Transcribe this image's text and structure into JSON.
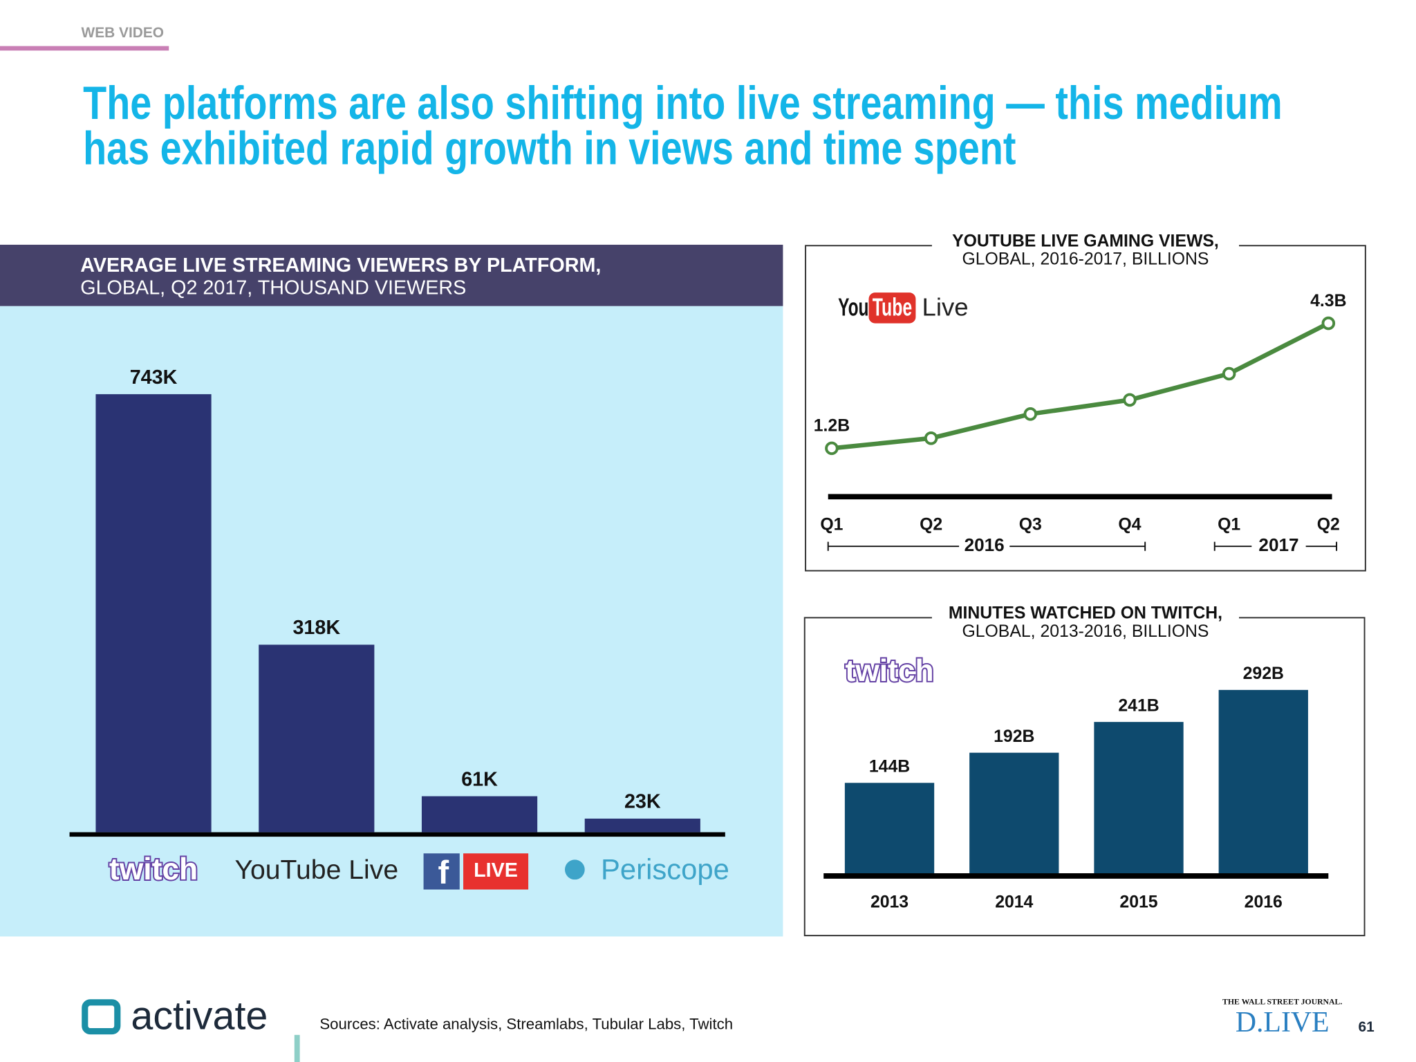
{
  "section": "WEB VIDEO",
  "title": [
    "The platforms are also shifting into live streaming — this medium",
    "has exhibited rapid growth in views and time spent"
  ],
  "source": "Sources: Activate analysis, Streamlabs, Tubular Labs, Twitch",
  "brand": "activate",
  "partner": [
    "THE WALL STREET JOURNAL.",
    "D.LIVE"
  ],
  "page_number": "61",
  "chart_data": [
    {
      "type": "bar",
      "title": [
        "AVERAGE LIVE STREAMING VIEWERS BY PLATFORM,",
        "GLOBAL, Q2 2017, THOUSAND VIEWERS"
      ],
      "categories": [
        "twitch",
        "YouTube Live",
        "LIVE",
        "Periscope"
      ],
      "values": [
        743,
        318,
        61,
        23
      ],
      "value_labels": [
        "743K",
        "318K",
        "61K",
        "23K"
      ],
      "color": "#2a3373"
    },
    {
      "type": "line",
      "title": [
        "YOUTUBE LIVE GAMING VIEWS,",
        "GLOBAL, 2016-2017, BILLIONS"
      ],
      "logo": [
        "You",
        "Tube",
        "Live"
      ],
      "categories": [
        "Q1",
        "Q2",
        "Q3",
        "Q4",
        "Q1",
        "Q2"
      ],
      "groups": [
        "2016",
        "2017"
      ],
      "values": [
        1.2,
        1.45,
        2.05,
        2.4,
        3.05,
        4.3
      ],
      "value_labels": [
        "1.2B",
        null,
        null,
        null,
        null,
        "4.3B"
      ],
      "color": "#4a8a3f"
    },
    {
      "type": "bar",
      "title": [
        "MINUTES WATCHED ON TWITCH,",
        "GLOBAL, 2013-2016, BILLIONS"
      ],
      "logo": "twitch",
      "categories": [
        "2013",
        "2014",
        "2015",
        "2016"
      ],
      "values": [
        144,
        192,
        241,
        292
      ],
      "value_labels": [
        "144B",
        "192B",
        "241B",
        "292B"
      ],
      "color": "#0e4a6e"
    }
  ]
}
